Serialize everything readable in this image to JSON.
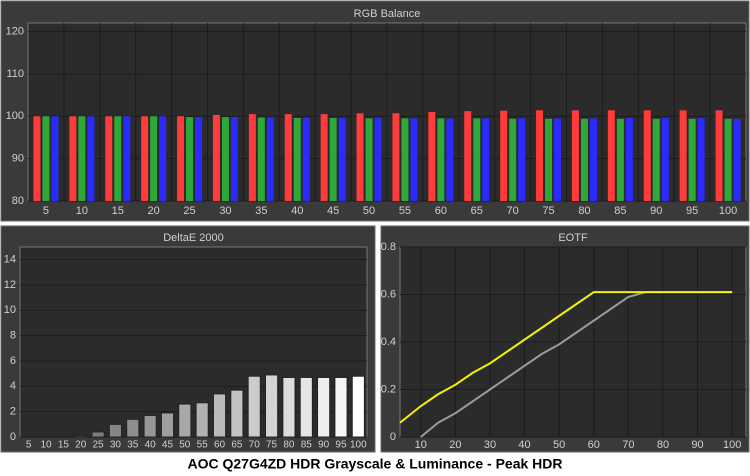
{
  "caption": "AOC Q27G4ZD HDR Grayscale & Luminance - Peak HDR",
  "chart_data": [
    {
      "type": "grouped_bar",
      "title": "RGB Balance",
      "categories": [
        "5",
        "10",
        "15",
        "20",
        "25",
        "30",
        "35",
        "40",
        "45",
        "50",
        "55",
        "60",
        "65",
        "70",
        "75",
        "80",
        "85",
        "90",
        "95",
        "100"
      ],
      "series": [
        {
          "name": "Red",
          "color": "#ff3b3b",
          "values": [
            100,
            100,
            100,
            100,
            100,
            100.3,
            100.5,
            100.5,
            100.5,
            100.7,
            100.7,
            101,
            101.2,
            101.3,
            101.4,
            101.4,
            101.4,
            101.4,
            101.4,
            101.4
          ]
        },
        {
          "name": "Green",
          "color": "#2fa83a",
          "values": [
            100,
            100,
            100,
            100,
            99.8,
            99.8,
            99.7,
            99.6,
            99.6,
            99.5,
            99.5,
            99.5,
            99.5,
            99.4,
            99.4,
            99.4,
            99.4,
            99.4,
            99.4,
            99.4
          ]
        },
        {
          "name": "Blue",
          "color": "#2b2bff",
          "values": [
            100,
            100,
            100,
            100,
            99.8,
            99.8,
            99.7,
            99.6,
            99.6,
            99.6,
            99.5,
            99.5,
            99.5,
            99.5,
            99.5,
            99.5,
            99.6,
            99.6,
            99.6,
            99.4
          ]
        }
      ],
      "ylim": [
        80,
        122
      ],
      "yticks": [
        80,
        90,
        100,
        110,
        120
      ],
      "grid": true
    },
    {
      "type": "bar",
      "title": "DeltaE 2000",
      "categories": [
        "5",
        "10",
        "15",
        "20",
        "25",
        "30",
        "35",
        "40",
        "45",
        "50",
        "55",
        "60",
        "65",
        "70",
        "75",
        "80",
        "85",
        "90",
        "95",
        "100"
      ],
      "values": [
        0,
        0,
        0,
        0.1,
        0.4,
        1,
        1.4,
        1.7,
        1.9,
        2.6,
        2.7,
        3.4,
        3.7,
        4.8,
        4.9,
        4.7,
        4.7,
        4.7,
        4.7,
        4.8
      ],
      "colors": [
        "#5a5a5a",
        "#ffffff"
      ],
      "ylim": [
        0,
        15
      ],
      "yticks": [
        0,
        2,
        4,
        6,
        8,
        10,
        12,
        14
      ],
      "grid": true
    },
    {
      "type": "line",
      "title": "EOTF",
      "x": [
        4,
        10,
        15,
        20,
        25,
        30,
        35,
        40,
        45,
        50,
        55,
        60,
        65,
        70,
        75,
        80,
        85,
        90,
        95,
        100
      ],
      "series": [
        {
          "name": "Measured",
          "color": "#f2f200",
          "values": [
            0.06,
            0.13,
            0.18,
            0.22,
            0.27,
            0.31,
            0.36,
            0.41,
            0.46,
            0.51,
            0.56,
            0.61,
            0.61,
            0.61,
            0.61,
            0.61,
            0.61,
            0.61,
            0.61,
            0.61
          ]
        },
        {
          "name": "Target",
          "color": "#9a9a9a",
          "values": [
            null,
            0,
            0.06,
            0.1,
            0.15,
            0.2,
            0.25,
            0.3,
            0.35,
            0.39,
            0.44,
            0.49,
            0.54,
            0.59,
            0.61,
            0.61,
            0.61,
            0.61,
            0.61,
            0.61
          ]
        }
      ],
      "xlim": [
        4,
        104
      ],
      "xticks": [
        10,
        20,
        30,
        40,
        50,
        60,
        70,
        80,
        90,
        100
      ],
      "ylim": [
        0,
        0.8
      ],
      "yticks": [
        0,
        0.2,
        0.4,
        0.6,
        0.8
      ],
      "grid": true
    }
  ]
}
